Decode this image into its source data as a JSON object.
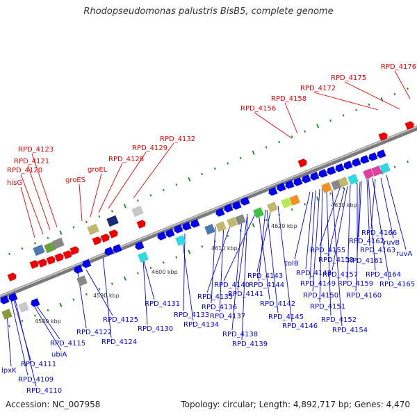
{
  "title": "Rhodopseudomonas palustris BisB5, complete genome",
  "footer": {
    "accession": "Accession: NC_007958",
    "summary": "Topology: circular; Length: 4,892,717 bp; Genes: 4,470"
  },
  "colors": {
    "forward": "#ee0000",
    "reverse": "#0000ee",
    "backbone": "#8c8c8c",
    "tick": "#2e8b2e"
  },
  "kbp_ticks": [
    "4580 kbp",
    "4590 kbp",
    "4600 kbp",
    "4610 kbp",
    "4620 kbp",
    "4630 kbp"
  ],
  "forward_labels": [
    "RPD_4176",
    "RPD_4175",
    "RPD_4172",
    "RPD_4158",
    "RPD_4156",
    "RPD_4132",
    "RPD_4129",
    "RPD_4128",
    "groEL",
    "groES",
    "RPD_4123",
    "RPD_4121",
    "RPD_4120",
    "hisG"
  ],
  "reverse_labels": [
    "RPD_4166",
    "ruvB",
    "ruvA",
    "RPD_4162",
    "RPD_4163",
    "RPD_4155",
    "RPD_4161",
    "RPD_4153",
    "RPD_4164",
    "tolB",
    "RPD_4157",
    "RPD_4165",
    "RPD_4148",
    "RPD_4159",
    "RPD_4149",
    "RPD_4160",
    "RPD_4150",
    "RPD_4143",
    "RPD_4151",
    "RPD_4140",
    "RPD_4144",
    "RPD_4141",
    "RPD_4135",
    "RPD_4142",
    "RPD_4131",
    "RPD_4136",
    "RPD_4145",
    "RPD_4152",
    "RPD_4133",
    "RPD_4137",
    "RPD_4146",
    "RPD_4125",
    "RPD_4134",
    "RPD_4154",
    "RPD_4130",
    "RPD_4138",
    "RPD_4122",
    "RPD_4139",
    "RPD_4124",
    "RPD_4115",
    "ubiA",
    "RPD_4111",
    "lpxK",
    "RPD_4109",
    "RPD_4110"
  ]
}
